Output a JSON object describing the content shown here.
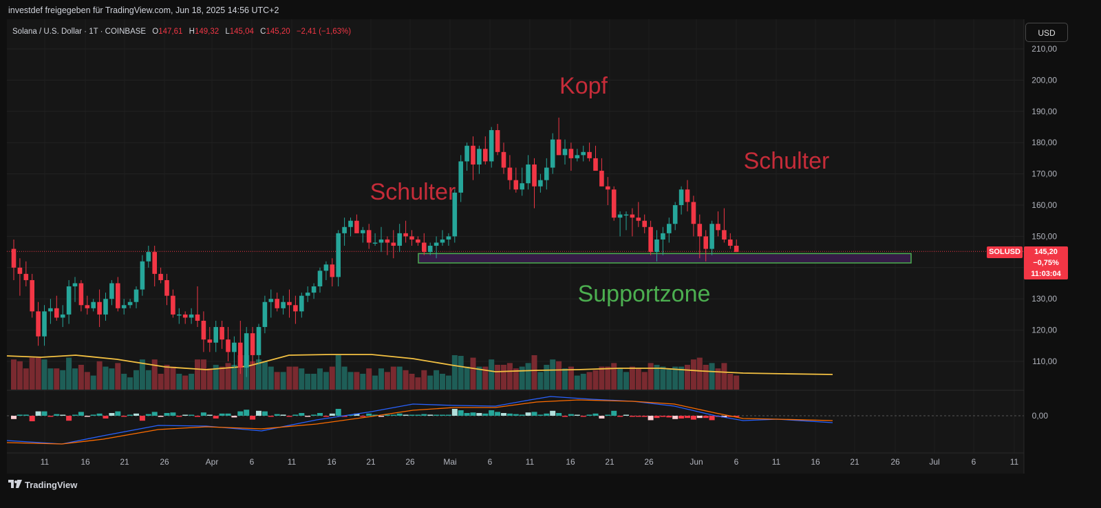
{
  "header": {
    "title": "investdef freigegeben für TradingView.com, Jun 18, 2025 14:56 UTC+2"
  },
  "legend": {
    "symbol": "Solana / U.S. Dollar · 1T · COINBASE",
    "o_label": "O",
    "o_value": "147,61",
    "h_label": "H",
    "h_value": "149,32",
    "l_label": "L",
    "l_value": "145,04",
    "c_label": "C",
    "c_value": "145,20",
    "change": "−2,41 (−1,63%)"
  },
  "currency_button": "USD",
  "price_tag": {
    "symbol": "SOLUSD",
    "price": "145,20",
    "change": "−0,75%",
    "countdown": "11:03:04"
  },
  "footer": {
    "brand": "TradingView"
  },
  "annotations": {
    "left_shoulder": "Schulter",
    "head": "Kopf",
    "right_shoulder": "Schulter",
    "support": "Supportzone"
  },
  "colors": {
    "up": "#26a69a",
    "down": "#f23645",
    "ma": "#f5c242",
    "support_fill": "#3b1d4f",
    "support_border": "#4caf50",
    "annotation_red": "#c62c39",
    "annotation_green": "#4caf50"
  },
  "chart_data": {
    "type": "candlestick",
    "y_axis": {
      "min": 100,
      "max": 210,
      "ticks": [
        "210,00",
        "200,00",
        "190,00",
        "180,00",
        "170,00",
        "160,00",
        "150,00",
        "140,00",
        "130,00",
        "120,00",
        "110,00"
      ]
    },
    "x_axis": {
      "ticks": [
        "11",
        "16",
        "21",
        "26",
        "Apr",
        "6",
        "11",
        "16",
        "21",
        "26",
        "Mai",
        "6",
        "11",
        "16",
        "21",
        "26",
        "Jun",
        "6",
        "11",
        "16",
        "21",
        "26",
        "Jul",
        "6",
        "11"
      ]
    },
    "oscillator_axis": {
      "ticks": [
        "0,00"
      ]
    },
    "last_price": 145.2,
    "support_zone": [
      141.5,
      144.5
    ],
    "candles": [
      [
        146,
        149,
        136,
        140
      ],
      [
        140,
        143,
        131,
        138
      ],
      [
        138,
        142,
        134,
        136
      ],
      [
        136,
        138,
        124,
        126
      ],
      [
        126,
        129,
        115,
        118
      ],
      [
        118,
        128,
        115,
        126
      ],
      [
        126,
        130,
        122,
        127
      ],
      [
        127,
        131,
        123,
        124
      ],
      [
        124,
        128,
        121,
        125
      ],
      [
        125,
        136,
        122,
        134
      ],
      [
        134,
        137,
        129,
        135
      ],
      [
        135,
        136,
        126,
        128
      ],
      [
        128,
        131,
        125,
        127
      ],
      [
        127,
        130,
        126,
        129
      ],
      [
        129,
        133,
        121,
        125
      ],
      [
        125,
        132,
        123,
        130
      ],
      [
        130,
        136,
        128,
        135
      ],
      [
        135,
        137,
        126,
        127
      ],
      [
        127,
        130,
        125,
        128
      ],
      [
        128,
        130,
        127,
        129
      ],
      [
        129,
        134,
        127,
        133
      ],
      [
        133,
        144,
        131,
        142
      ],
      [
        142,
        147,
        140,
        145
      ],
      [
        145,
        147,
        134,
        138
      ],
      [
        138,
        140,
        135,
        136
      ],
      [
        136,
        138,
        128,
        131
      ],
      [
        131,
        133,
        124,
        125
      ],
      [
        125,
        127,
        122,
        125
      ],
      [
        125,
        126,
        122,
        124
      ],
      [
        124,
        127,
        122,
        125
      ],
      [
        125,
        134,
        121,
        123
      ],
      [
        123,
        126,
        113,
        117
      ],
      [
        117,
        121,
        113,
        116
      ],
      [
        116,
        123,
        113,
        121
      ],
      [
        121,
        123,
        114,
        117
      ],
      [
        117,
        121,
        110,
        113
      ],
      [
        113,
        118,
        108,
        116
      ],
      [
        116,
        123,
        106,
        108
      ],
      [
        108,
        121,
        105,
        119
      ],
      [
        119,
        121,
        109,
        112
      ],
      [
        112,
        122,
        109,
        121
      ],
      [
        121,
        131,
        119,
        129
      ],
      [
        129,
        133,
        124,
        130
      ],
      [
        130,
        132,
        126,
        127
      ],
      [
        127,
        131,
        125,
        129
      ],
      [
        129,
        133,
        124,
        128
      ],
      [
        128,
        131,
        122,
        126
      ],
      [
        126,
        132,
        124,
        131
      ],
      [
        131,
        134,
        129,
        132
      ],
      [
        132,
        135,
        130,
        134
      ],
      [
        134,
        140,
        132,
        139
      ],
      [
        139,
        142,
        136,
        141
      ],
      [
        141,
        143,
        134,
        137
      ],
      [
        137,
        152,
        134,
        151
      ],
      [
        151,
        156,
        147,
        153
      ],
      [
        153,
        156,
        150,
        155
      ],
      [
        155,
        157,
        151,
        151
      ],
      [
        151,
        153,
        148,
        152
      ],
      [
        152,
        154,
        146,
        148
      ],
      [
        148,
        151,
        147,
        148
      ],
      [
        148,
        153,
        145,
        149
      ],
      [
        149,
        150,
        144,
        148
      ],
      [
        148,
        152,
        143,
        147
      ],
      [
        147,
        154,
        145,
        151
      ],
      [
        151,
        155,
        148,
        150
      ],
      [
        150,
        152,
        147,
        149
      ],
      [
        149,
        150,
        147,
        148
      ],
      [
        148,
        151,
        144,
        145
      ],
      [
        145,
        148,
        144,
        147
      ],
      [
        147,
        150,
        143,
        148
      ],
      [
        148,
        152,
        147,
        149
      ],
      [
        149,
        151,
        147,
        150
      ],
      [
        150,
        165,
        148,
        164
      ],
      [
        164,
        176,
        161,
        174
      ],
      [
        174,
        180,
        171,
        179
      ],
      [
        179,
        182,
        168,
        173
      ],
      [
        173,
        179,
        170,
        178
      ],
      [
        178,
        182,
        173,
        174
      ],
      [
        174,
        185,
        172,
        184
      ],
      [
        184,
        186,
        176,
        177
      ],
      [
        177,
        180,
        170,
        172
      ],
      [
        172,
        176,
        165,
        168
      ],
      [
        168,
        172,
        164,
        165
      ],
      [
        165,
        172,
        163,
        167
      ],
      [
        167,
        176,
        165,
        173
      ],
      [
        173,
        175,
        159,
        166
      ],
      [
        166,
        170,
        164,
        168
      ],
      [
        168,
        175,
        165,
        172
      ],
      [
        172,
        183,
        170,
        181
      ],
      [
        181,
        188,
        176,
        176
      ],
      [
        176,
        181,
        173,
        178
      ],
      [
        178,
        180,
        171,
        175
      ],
      [
        175,
        178,
        174,
        176
      ],
      [
        176,
        179,
        174,
        177
      ],
      [
        177,
        180,
        174,
        175
      ],
      [
        175,
        179,
        172,
        171
      ],
      [
        171,
        175,
        166,
        166
      ],
      [
        166,
        169,
        160,
        165
      ],
      [
        165,
        166,
        155,
        156
      ],
      [
        156,
        158,
        150,
        157
      ],
      [
        157,
        158,
        152,
        157
      ],
      [
        157,
        159,
        150,
        156
      ],
      [
        156,
        161,
        153,
        155
      ],
      [
        155,
        157,
        151,
        153
      ],
      [
        153,
        155,
        144,
        145
      ],
      [
        145,
        152,
        142,
        149
      ],
      [
        149,
        153,
        144,
        151
      ],
      [
        151,
        156,
        148,
        154
      ],
      [
        154,
        161,
        152,
        160
      ],
      [
        160,
        166,
        157,
        165
      ],
      [
        165,
        168,
        158,
        161
      ],
      [
        161,
        163,
        150,
        154
      ],
      [
        154,
        157,
        143,
        150
      ],
      [
        150,
        152,
        142,
        146
      ],
      [
        146,
        155,
        144,
        154
      ],
      [
        154,
        158,
        150,
        152
      ],
      [
        152,
        159,
        148,
        149
      ],
      [
        149,
        151,
        146,
        147
      ],
      [
        147,
        149,
        145,
        145
      ]
    ]
  }
}
